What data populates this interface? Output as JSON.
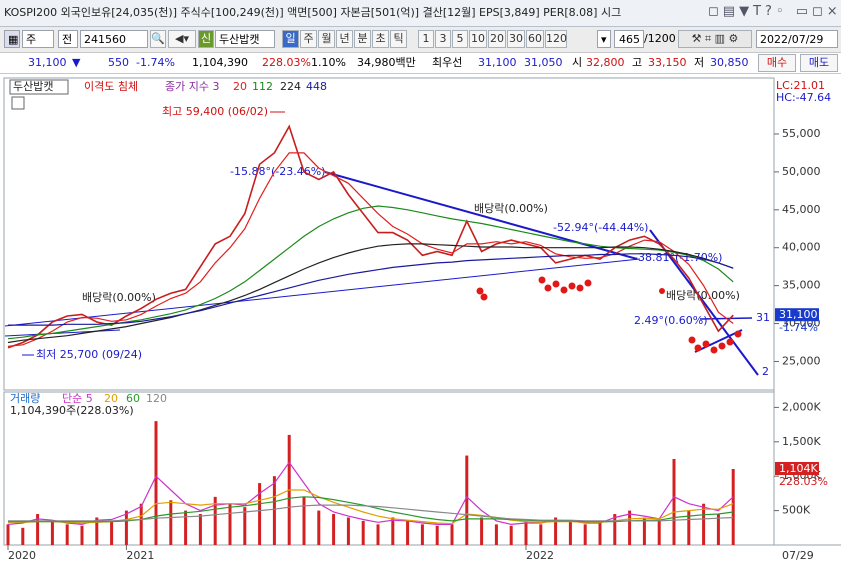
{
  "header": {
    "title": "KOSPI200 외국인보유[24,035(천)] 주식수[100,249(천)] 액면[500] 자본금[501(억)] 결산[12월] EPS[3,849] PER[8.08] 시그"
  },
  "toolbar": {
    "market": "주",
    "type": "전",
    "code": "241560",
    "badge": "신",
    "name": "두산밥캣",
    "periods": [
      "일",
      "주",
      "월",
      "년",
      "분",
      "초",
      "틱"
    ],
    "intervals": [
      "1",
      "3",
      "5",
      "10",
      "20",
      "30",
      "60",
      "120"
    ],
    "count": "465",
    "total": "/1200",
    "date": "2022/07/29"
  },
  "quote": {
    "price": "31,100",
    "change": "550",
    "change_pct": "-1.74%",
    "volume": "1,104,390",
    "vol_ratio": "228.03%",
    "turnover": "1.10%",
    "amount": "34,980백만",
    "best_label": "최우선",
    "ask": "31,100",
    "bid": "31,050",
    "open_label": "시",
    "open": "32,800",
    "high_label": "고",
    "high": "33,150",
    "low_label": "저",
    "low": "30,850",
    "buy": "매수",
    "sell": "매도"
  },
  "chart_data": [
    {
      "type": "line",
      "indicator": "이격도 침체",
      "ma_label": "종가 지수 3",
      "lc": "LC:21.01",
      "hc": "HC:-47.64",
      "annotations": [
        "최고 59,400 (06/02)",
        "최저 25,700 (09/24)",
        "배당락(0.00%)",
        "배당락(0.00%)",
        "배당락(0.00%)",
        "-15.88°(-23.46%)",
        "-52.94°(-44.44%)",
        "-38.81°(-1.70%)",
        "2.49°(0.60%)",
        "31",
        "2"
      ],
      "ylim": [
        21500,
        60800
      ],
      "yticks": [
        {
          "value": 25000,
          "label": "25,000"
        },
        {
          "value": 30000,
          "label": "30,000"
        },
        {
          "value": 35000,
          "label": "35,000"
        },
        {
          "value": 40000,
          "label": "40,000"
        },
        {
          "value": 45000,
          "label": "45,000"
        },
        {
          "value": 50000,
          "label": "50,000"
        },
        {
          "value": 55000,
          "label": "55,000"
        }
      ],
      "last_label": "31,100",
      "last_change": "-1.74%",
      "series": [
        {
          "name": "두산밥캣",
          "color": "#c81e1e",
          "values": [
            26800,
            27500,
            28500,
            30200,
            31000,
            31200,
            30200,
            29800,
            31000,
            32000,
            33200,
            34000,
            34500,
            37500,
            40500,
            41500,
            44500,
            51000,
            52500,
            56000,
            50000,
            49000,
            50000,
            47000,
            44500,
            42000,
            42000,
            41000,
            39000,
            39500,
            39000,
            43500,
            39500,
            40500,
            41000,
            40500,
            40000,
            38000,
            38500,
            39000,
            38500,
            40000,
            41000,
            41500,
            40500,
            38500,
            36000,
            32500,
            29000,
            31100
          ]
        },
        {
          "name": "20",
          "color": "#e02020",
          "values": [
            27000,
            27200,
            28000,
            29000,
            30200,
            30800,
            30700,
            30300,
            30500,
            31200,
            32300,
            33300,
            34000,
            35500,
            38000,
            40000,
            42500,
            46500,
            50000,
            52500,
            52500,
            50500,
            49500,
            48500,
            46500,
            44500,
            42800,
            41800,
            40500,
            39800,
            39300,
            40500,
            40500,
            40800,
            40500,
            40800,
            40300,
            39200,
            38800,
            38600,
            38700,
            39200,
            40200,
            41000,
            40800,
            39500,
            37800,
            35000,
            31500,
            30000
          ]
        },
        {
          "name": "112",
          "color": "#1a8a1a",
          "values": [
            28000,
            28200,
            28500,
            28700,
            29000,
            29300,
            29600,
            29900,
            30200,
            30500,
            30900,
            31300,
            31800,
            32500,
            33300,
            34300,
            35500,
            37000,
            38500,
            40000,
            41500,
            42800,
            43800,
            44600,
            45200,
            45500,
            45300,
            45000,
            44600,
            44200,
            43800,
            43500,
            43200,
            42800,
            42400,
            42000,
            41600,
            41200,
            40800,
            40500,
            40200,
            40000,
            39900,
            39800,
            39700,
            39400,
            39000,
            38300,
            37200,
            35500
          ]
        },
        {
          "name": "224",
          "color": "#222222",
          "values": [
            27500,
            27800,
            28000,
            28200,
            28400,
            28700,
            29000,
            29300,
            29600,
            30000,
            30400,
            30800,
            31300,
            31800,
            32400,
            33000,
            33700,
            34500,
            35400,
            36300,
            37200,
            38000,
            38700,
            39300,
            39800,
            40200,
            40400,
            40500,
            40500,
            40400,
            40300,
            40200,
            40100,
            40100,
            40100,
            40000,
            40000,
            40000,
            40000,
            40000,
            40000,
            40100,
            40100,
            40000,
            39800,
            39500,
            39100,
            38600,
            38000,
            37300
          ]
        },
        {
          "name": "448",
          "color": "#1a1aa0",
          "values": [
            29800,
            29800,
            29800,
            29800,
            29900,
            29900,
            29900,
            30000,
            30100,
            30300,
            30600,
            30900,
            31300,
            31700,
            32200,
            32700,
            33200,
            33700,
            34200,
            34700,
            35200,
            35700,
            36100,
            36500,
            36800,
            37100,
            37400,
            37600,
            37800,
            38000,
            38100,
            38300,
            38400,
            38500,
            38600,
            38700,
            38800,
            38900,
            39000,
            39000,
            39100,
            39100,
            39200,
            39200,
            39100,
            39000,
            38800,
            38500,
            38000,
            37300
          ]
        }
      ]
    },
    {
      "type": "bar",
      "volume_label": "1,104,390주(228.03%)",
      "last_label": "1,104K",
      "last_ratio": "228.03%",
      "x_end_label": "07/29",
      "categories": [
        "2020",
        null,
        null,
        null,
        null,
        null,
        null,
        null,
        "2021",
        null,
        null,
        null,
        null,
        null,
        null,
        null,
        null,
        null,
        null,
        null,
        null,
        null,
        null,
        null,
        null,
        null,
        null,
        null,
        null,
        null,
        null,
        null,
        null,
        null,
        null,
        "2022",
        null,
        null,
        null,
        null,
        null,
        null,
        null,
        null,
        null,
        null,
        null,
        null,
        null,
        null
      ],
      "ylim": [
        0,
        2180000
      ],
      "yticks": [
        {
          "value": 500000,
          "label": "500K"
        },
        {
          "value": 1000000,
          "label": "1,000K"
        },
        {
          "value": 1500000,
          "label": "1,500K"
        },
        {
          "value": 2000000,
          "label": "2,000K"
        }
      ],
      "series": [
        {
          "name": "거래량",
          "type": "bar",
          "color": "#d42020",
          "values": [
            300000,
            250000,
            450000,
            350000,
            300000,
            280000,
            400000,
            350000,
            500000,
            600000,
            1800000,
            650000,
            500000,
            450000,
            700000,
            600000,
            550000,
            900000,
            1000000,
            1600000,
            700000,
            500000,
            450000,
            400000,
            350000,
            300000,
            400000,
            350000,
            300000,
            280000,
            300000,
            1300000,
            400000,
            300000,
            280000,
            350000,
            300000,
            400000,
            350000,
            300000,
            320000,
            450000,
            500000,
            400000,
            350000,
            1250000,
            500000,
            600000,
            450000,
            1104390
          ]
        },
        {
          "name": "단순 5",
          "type": "line",
          "color": "#cc33cc",
          "values": [
            300000,
            320000,
            380000,
            360000,
            320000,
            300000,
            360000,
            370000,
            450000,
            560000,
            1000000,
            800000,
            600000,
            500000,
            580000,
            600000,
            580000,
            750000,
            900000,
            1200000,
            900000,
            600000,
            480000,
            420000,
            370000,
            330000,
            360000,
            350000,
            320000,
            300000,
            300000,
            700000,
            500000,
            350000,
            300000,
            320000,
            320000,
            360000,
            350000,
            320000,
            320000,
            400000,
            450000,
            420000,
            380000,
            700000,
            600000,
            550000,
            500000,
            700000
          ]
        },
        {
          "name": "20",
          "type": "line",
          "color": "#e0a000",
          "values": [
            330000,
            330000,
            340000,
            340000,
            330000,
            320000,
            330000,
            340000,
            370000,
            420000,
            600000,
            620000,
            600000,
            580000,
            600000,
            600000,
            600000,
            650000,
            700000,
            800000,
            800000,
            700000,
            620000,
            550000,
            480000,
            420000,
            380000,
            360000,
            340000,
            320000,
            310000,
            450000,
            430000,
            400000,
            360000,
            340000,
            330000,
            340000,
            340000,
            330000,
            330000,
            350000,
            380000,
            390000,
            380000,
            480000,
            500000,
            520000,
            520000,
            600000
          ]
        },
        {
          "name": "60",
          "type": "line",
          "color": "#2a9a2a",
          "values": [
            340000,
            340000,
            340000,
            340000,
            340000,
            340000,
            340000,
            340000,
            350000,
            370000,
            420000,
            450000,
            470000,
            490000,
            520000,
            550000,
            570000,
            600000,
            630000,
            680000,
            700000,
            690000,
            660000,
            620000,
            580000,
            530000,
            480000,
            440000,
            400000,
            370000,
            350000,
            380000,
            380000,
            380000,
            370000,
            360000,
            350000,
            350000,
            350000,
            340000,
            340000,
            340000,
            350000,
            360000,
            360000,
            400000,
            420000,
            440000,
            450000,
            480000
          ]
        },
        {
          "name": "120",
          "type": "line",
          "color": "#888888",
          "values": [
            350000,
            350000,
            350000,
            350000,
            350000,
            350000,
            350000,
            350000,
            360000,
            370000,
            390000,
            400000,
            410000,
            420000,
            440000,
            460000,
            480000,
            500000,
            520000,
            550000,
            570000,
            580000,
            580000,
            580000,
            570000,
            560000,
            540000,
            520000,
            500000,
            480000,
            460000,
            440000,
            420000,
            400000,
            380000,
            370000,
            360000,
            360000,
            360000,
            350000,
            350000,
            350000,
            350000,
            350000,
            350000,
            360000,
            370000,
            380000,
            390000,
            400000
          ]
        }
      ]
    }
  ]
}
